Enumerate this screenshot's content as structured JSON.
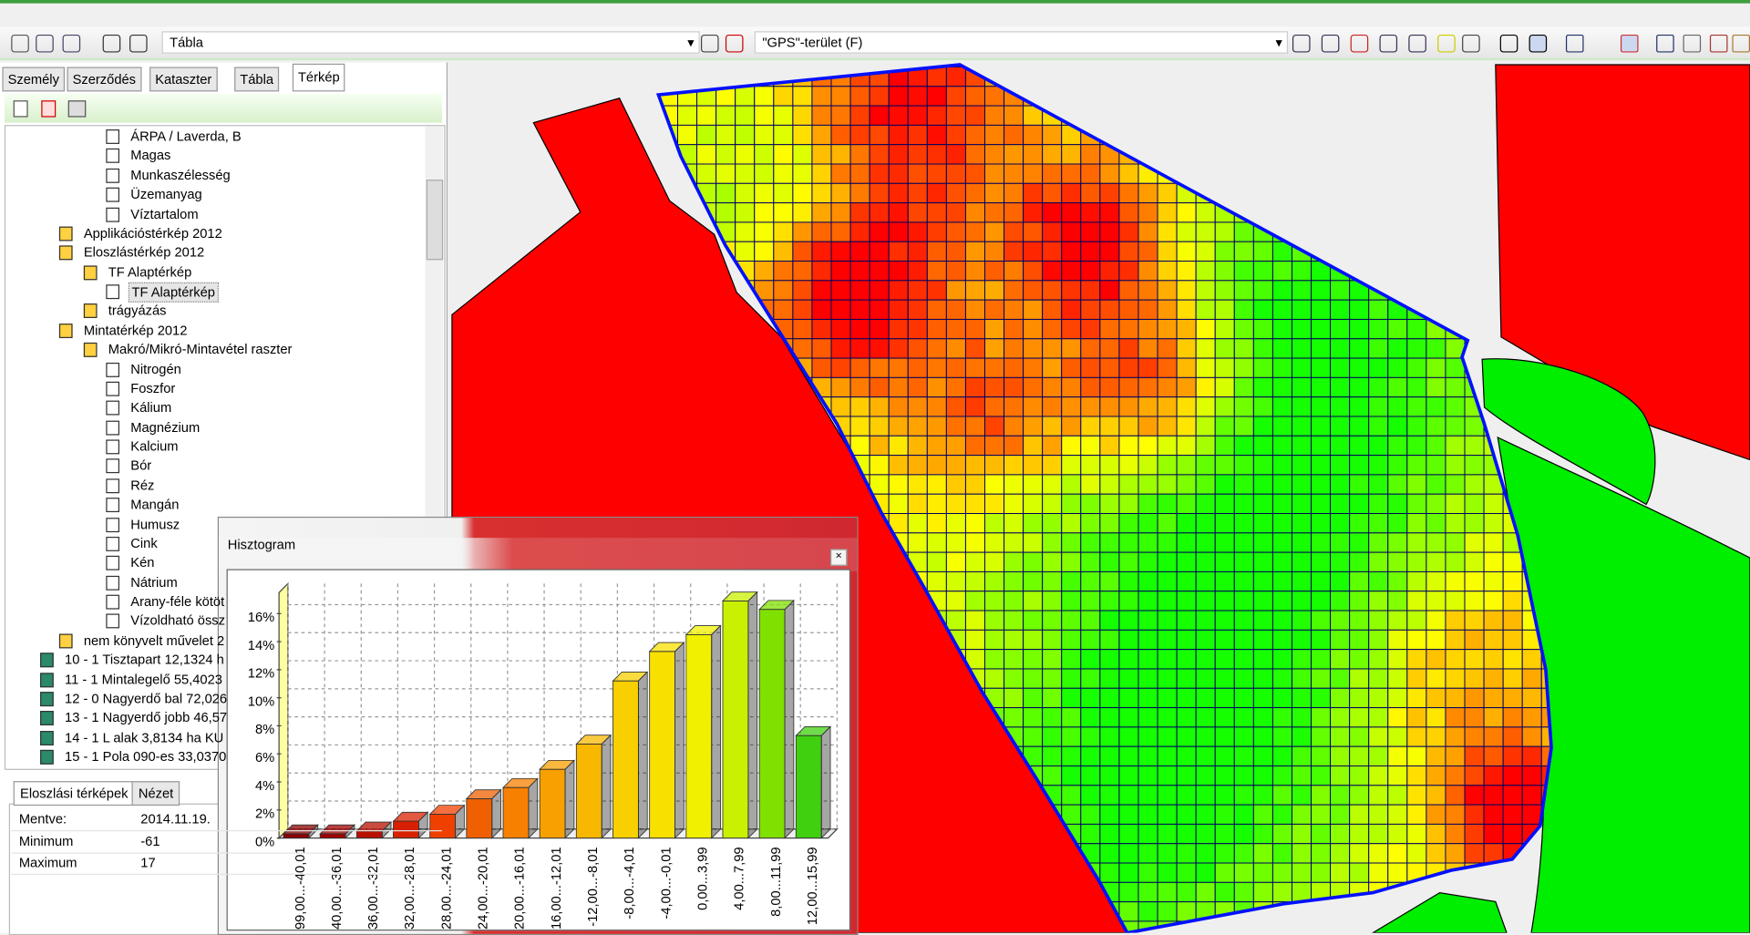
{
  "toolbar": {
    "table_select": "Tábla",
    "layer_select": "\"GPS\"-terület (F)"
  },
  "tabs": [
    "Személy",
    "Szerződés",
    "Kataszter",
    "Tábla",
    "Térkép"
  ],
  "tree": [
    "ÁRPA / Laverda, B",
    "Magas",
    "Munkaszélesség",
    "Üzemanyag",
    "Víztartalom",
    "Applikációstérkép 2012",
    "Eloszlástérkép 2012",
    "TF Alaptérkép",
    "TF Alaptérkép",
    "trágyázás",
    "Mintatérkép 2012",
    "Makró/Mikró-Mintavétel raszter",
    "Nitrogén",
    "Foszfor",
    "Kálium",
    "Magnézium",
    "Kalcium",
    "Bór",
    "Réz",
    "Mangán",
    "Humusz",
    "Cink",
    "Kén",
    "Nátrium",
    "Arany-féle kötöt",
    "Vízoldható össz",
    "nem könyvelt művelet 2",
    "10 - 1 Tisztapart 12,1324 h",
    "11 - 1 Mintalegelő 55,4023",
    "12 - 0 Nagyerdő bal 72,026",
    "13 - 1 Nagyerdő jobb 46,57",
    "14 - 1 L alak 3,8134 ha KU",
    "15 - 1 Pola 090-es 33,0370"
  ],
  "bottom_tabs": [
    "Eloszlási térképek",
    "Nézet"
  ],
  "properties": [
    [
      "Mentve:",
      "2014.11.19."
    ],
    [
      "Minimum",
      "-61"
    ],
    [
      "Maximum",
      "17"
    ]
  ],
  "dialog": {
    "title": "Hisztogram"
  },
  "chart_data": {
    "type": "bar",
    "categories": [
      "-99,00...-40,01",
      "-40,00...-36,01",
      "-36,00...-32,01",
      "-32,00...-28,01",
      "-28,00...-24,01",
      "-24,00...-20,01",
      "-20,00...-16,01",
      "-16,00...-12,01",
      "-12,00...-8,01",
      "-8,00...-4,01",
      "-4,00...-0,01",
      "0,00...3,99",
      "4,00...7,99",
      "8,00...11,99",
      "12,00...15,99"
    ],
    "values": [
      0.3,
      0.3,
      0.5,
      1.2,
      1.7,
      2.8,
      3.6,
      4.9,
      6.7,
      11.2,
      13.3,
      14.5,
      16.9,
      16.3,
      7.3
    ],
    "colors": [
      "#8b0000",
      "#a00000",
      "#b81000",
      "#d82000",
      "#f04000",
      "#f06000",
      "#f88000",
      "#f8a000",
      "#f8b800",
      "#f8d000",
      "#f8e000",
      "#f0f000",
      "#c8f000",
      "#80e000",
      "#40d010"
    ],
    "ylim": [
      0,
      17.5
    ],
    "yticks": [
      {
        "value": 0,
        "label": "0%"
      },
      {
        "value": 2,
        "label": "2%"
      },
      {
        "value": 4,
        "label": "4%"
      },
      {
        "value": 6,
        "label": "6%"
      },
      {
        "value": 8,
        "label": "8%"
      },
      {
        "value": 10,
        "label": "10%"
      },
      {
        "value": 12,
        "label": "12%"
      },
      {
        "value": 14,
        "label": "14%"
      },
      {
        "value": 16,
        "label": "16%"
      }
    ],
    "grid": true
  }
}
